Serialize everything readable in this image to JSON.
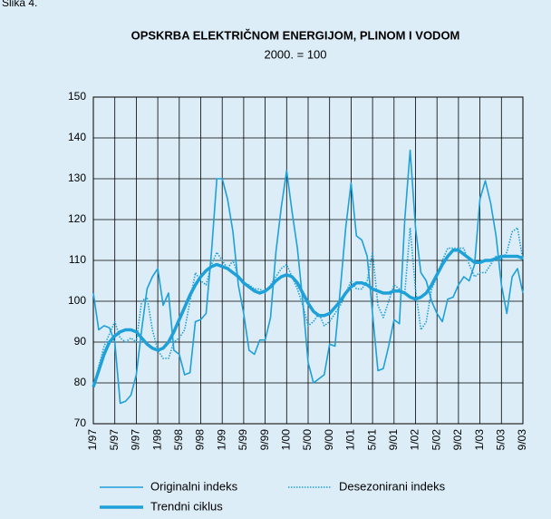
{
  "chart_data": {
    "type": "line",
    "caption": "Slika 4.",
    "title": "OPSKRBA ELEKTRIČNOM ENERGIJOM, PLINOM I VODOM",
    "subtitle": "2000. = 100",
    "categories": [
      "1/97",
      null,
      null,
      null,
      "5/97",
      null,
      null,
      null,
      "9/97",
      null,
      null,
      null,
      "1/98",
      null,
      null,
      null,
      "5/98",
      null,
      null,
      null,
      "9/98",
      null,
      null,
      null,
      "1/99",
      null,
      null,
      null,
      "5/99",
      null,
      null,
      null,
      "9/99",
      null,
      null,
      null,
      "1/00",
      null,
      null,
      null,
      "5/00",
      null,
      null,
      null,
      "9/00",
      null,
      null,
      null,
      "1/01",
      null,
      null,
      null,
      "5/01",
      null,
      null,
      null,
      "9/01",
      null,
      null,
      null,
      "1/02",
      null,
      null,
      null,
      "5/02",
      null,
      null,
      null,
      "9/02",
      null,
      null,
      null,
      "1/03",
      null,
      null,
      null,
      "5/03",
      null,
      null,
      null,
      "9/03"
    ],
    "series": [
      {
        "name": "Originalni indeks",
        "color": "#1ea0d8",
        "values": [
          102,
          93,
          94,
          93.5,
          90,
          75,
          75.5,
          77,
          82,
          93,
          103,
          106,
          108,
          99,
          102,
          88,
          87,
          82,
          82.5,
          95,
          95.5,
          97,
          112,
          130,
          130,
          125,
          117,
          104,
          97,
          88,
          87,
          90.5,
          90.5,
          96,
          112,
          123,
          132,
          122,
          113,
          100,
          85,
          80,
          81,
          82,
          89.5,
          89,
          103,
          118,
          129,
          116,
          115,
          111,
          97,
          83,
          83.5,
          89,
          95.5,
          94.5,
          120,
          137,
          118,
          107,
          105,
          100,
          97,
          95,
          100.5,
          101,
          104,
          106,
          105,
          109,
          125,
          129.5,
          124,
          116,
          104,
          97,
          106,
          108,
          102
        ]
      },
      {
        "name": "Desezonirani indeks",
        "color": "#1ea0d8",
        "values": [
          79,
          84,
          89,
          92,
          95,
          91,
          90,
          91,
          90,
          100,
          101,
          93,
          88,
          86,
          86,
          90,
          91,
          93,
          100,
          107,
          105,
          104,
          109,
          112,
          110,
          108,
          110,
          106,
          104,
          104,
          103,
          103,
          102,
          104,
          106,
          108,
          109,
          106,
          103,
          99,
          94,
          95,
          97,
          94,
          95,
          97,
          99,
          102,
          105,
          103,
          103,
          105,
          112,
          99,
          96,
          100,
          104,
          103,
          102,
          118,
          103,
          93,
          95,
          103,
          106,
          110,
          113,
          113,
          113,
          113,
          109,
          106,
          107,
          107,
          109,
          111,
          110,
          112,
          117,
          118,
          110
        ]
      },
      {
        "name": "Trendni ciklus",
        "color": "#1ea0d8",
        "values": [
          79,
          83,
          87,
          90,
          91.5,
          92.5,
          93,
          93,
          92.5,
          91,
          89.5,
          88.5,
          88,
          88.5,
          90,
          92.5,
          95.5,
          98.5,
          101.5,
          104,
          106,
          107.5,
          108.5,
          109,
          108.5,
          108,
          107,
          106,
          104.5,
          103.5,
          102.5,
          102,
          102.5,
          103.5,
          105,
          106,
          106.5,
          106,
          104.5,
          102,
          99.5,
          97.5,
          96.5,
          96.5,
          97,
          98.5,
          100,
          102,
          103.5,
          104.5,
          104.5,
          104,
          103,
          102.5,
          102,
          102,
          102.5,
          102.5,
          102,
          101,
          100.5,
          101,
          102,
          104,
          106.5,
          109,
          111,
          112.5,
          112.5,
          111.5,
          110.5,
          109.5,
          109.5,
          110,
          110,
          110.5,
          111,
          111,
          111,
          111,
          110.5
        ]
      }
    ],
    "ylim": [
      70,
      150
    ],
    "yticks": [
      70,
      80,
      90,
      100,
      110,
      120,
      130,
      140,
      150
    ],
    "grid": true
  }
}
